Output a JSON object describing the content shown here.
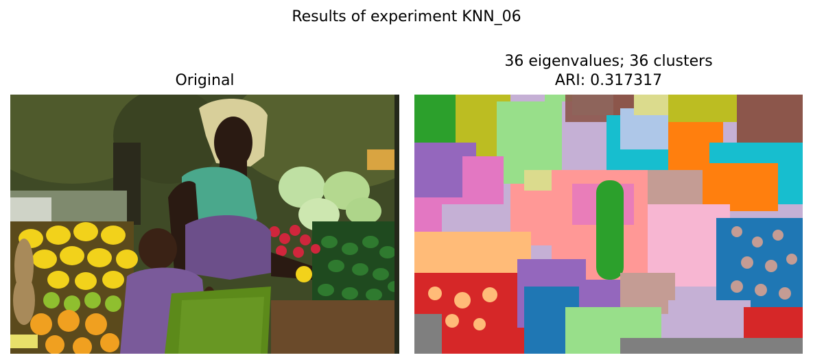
{
  "figure": {
    "suptitle": "Results of experiment KNN_06"
  },
  "left_panel": {
    "title": "Original"
  },
  "right_panel": {
    "title_line1": "36 eigenvalues; 36 clusters",
    "title_line2": "ARI: 0.317317"
  },
  "palette": {
    "tab_blue": "#1f77b4",
    "tab_orange": "#ff7f0e",
    "tab_green": "#2ca02c",
    "tab_red": "#d62728",
    "tab_purple": "#9467bd",
    "tab_brown": "#8c564b",
    "tab_pink": "#e377c2",
    "tab_gray": "#7f7f7f",
    "tab_olive": "#bcbd22",
    "tab_cyan": "#17becf"
  }
}
